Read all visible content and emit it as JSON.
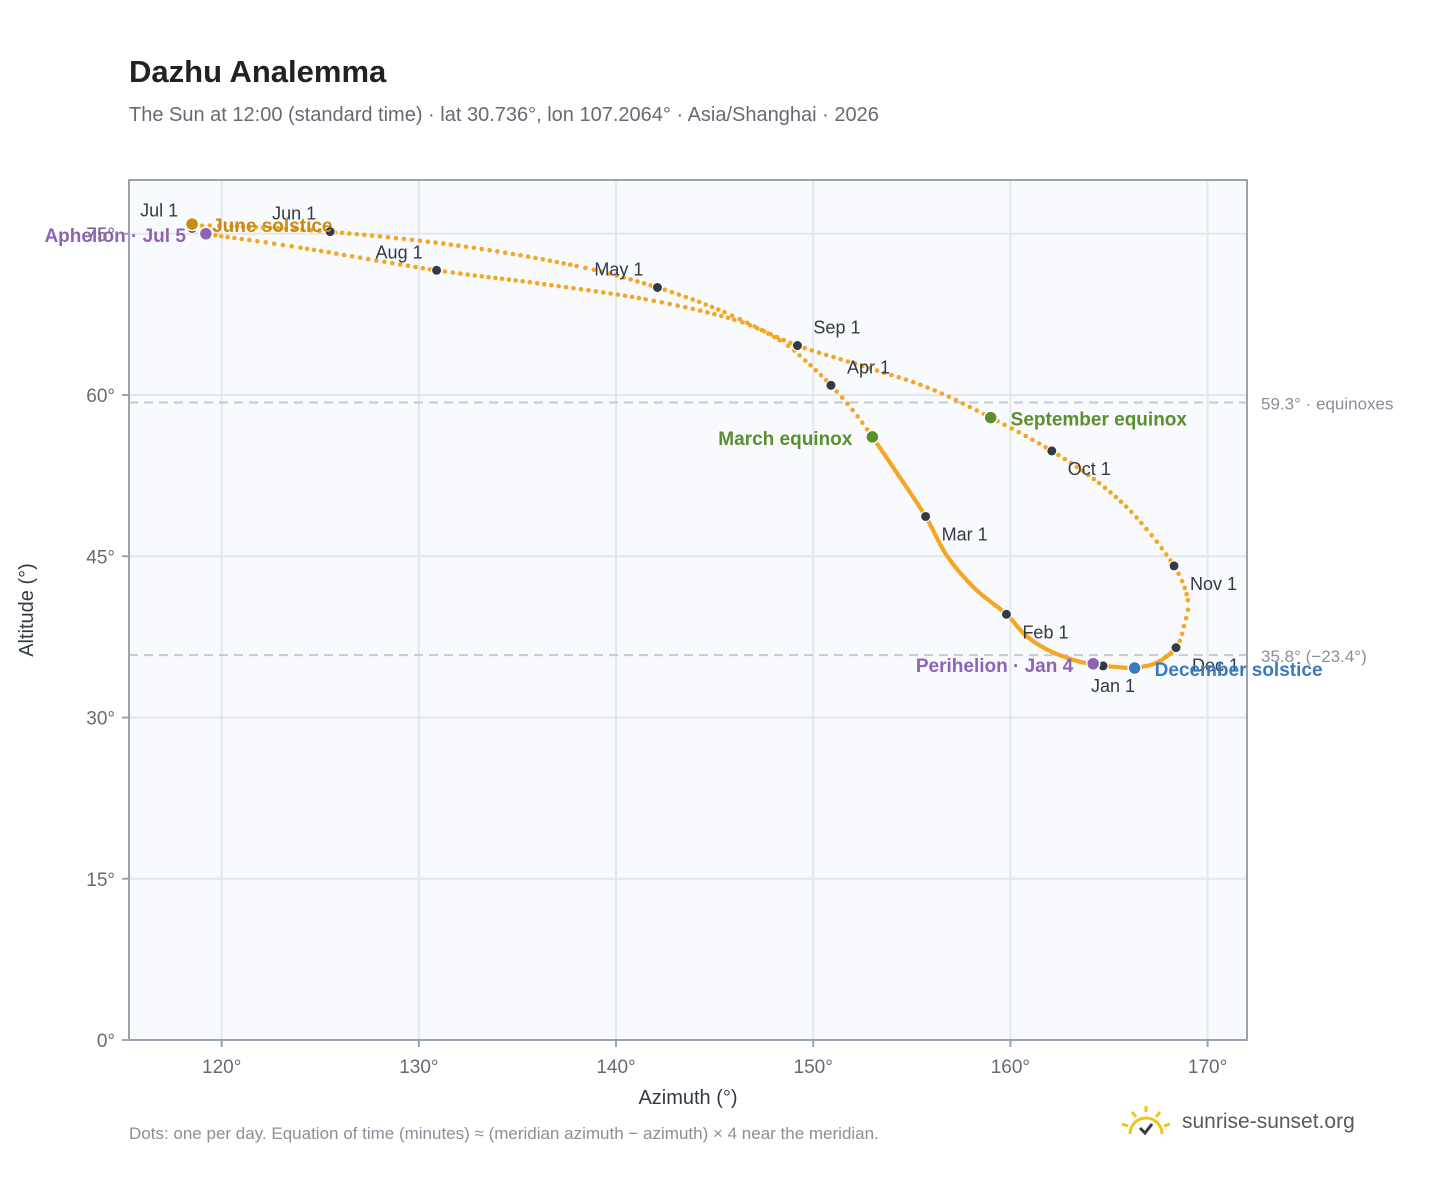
{
  "title": "Dazhu Analemma",
  "subtitle": "The Sun at 12:00 (standard time) · lat 30.736°, lon 107.2064° · Asia/Shanghai · 2026",
  "footer_note": "Dots: one per day. Equation of time (minutes) ≈ (meridian azimuth − azimuth) × 4 near the meridian.",
  "brand": {
    "text": "sunrise-sunset.org",
    "icon": "sun-logo-icon",
    "color": "#f0c419"
  },
  "colors": {
    "curve": "#f5a623",
    "month_dot": "#333a45",
    "march_equinox": "#5a8f2e",
    "september_equinox": "#5a8f2e",
    "june_solstice": "#c88a12",
    "december_solstice": "#3a7bbf",
    "aphelion": "#8e63b5",
    "perihelion": "#8e63b5",
    "grid": "#e3e7ee",
    "frame": "#9aa3b0",
    "plot_bg": "#f8fafd",
    "ref_line": "#c5cad3"
  },
  "chart_data": {
    "type": "scatter",
    "xlabel": "Azimuth (°)",
    "ylabel": "Altitude (°)",
    "xlim": [
      115.3,
      172.0
    ],
    "ylim": [
      0,
      80
    ],
    "x_ticks": [
      120,
      130,
      140,
      150,
      160,
      170
    ],
    "x_tick_labels": [
      "120°",
      "130°",
      "140°",
      "150°",
      "160°",
      "170°"
    ],
    "y_ticks": [
      0,
      15,
      30,
      45,
      60,
      75
    ],
    "y_tick_labels": [
      "0°",
      "15°",
      "30°",
      "45°",
      "60°",
      "75°"
    ],
    "grid": true,
    "reference_lines": [
      {
        "y": 59.3,
        "label": "59.3° · equinoxes"
      },
      {
        "y": 35.8,
        "label": "35.8° (−23.4°)"
      }
    ],
    "path": [
      [
        166.0,
        34.6
      ],
      [
        164.8,
        34.8
      ],
      [
        163.5,
        35.2
      ],
      [
        162.0,
        36.2
      ],
      [
        160.8,
        37.6
      ],
      [
        159.8,
        39.6
      ],
      [
        158.2,
        42.0
      ],
      [
        156.8,
        45.0
      ],
      [
        155.7,
        48.7
      ],
      [
        154.3,
        52.6
      ],
      [
        153.0,
        56.1
      ],
      [
        152.0,
        58.6
      ],
      [
        150.9,
        60.9
      ],
      [
        149.6,
        63.2
      ],
      [
        148.3,
        65.1
      ],
      [
        145.5,
        67.7
      ],
      [
        142.1,
        70.0
      ],
      [
        138.0,
        72.0
      ],
      [
        132.0,
        73.9
      ],
      [
        125.4,
        75.2
      ],
      [
        120.5,
        75.7
      ],
      [
        118.5,
        75.7
      ],
      [
        118.6,
        75.3
      ],
      [
        119.2,
        75.0
      ],
      [
        124.0,
        73.7
      ],
      [
        130.9,
        71.6
      ],
      [
        136.0,
        70.4
      ],
      [
        141.5,
        68.9
      ],
      [
        146.0,
        67.0
      ],
      [
        149.2,
        64.6
      ],
      [
        152.5,
        62.7
      ],
      [
        155.8,
        60.7
      ],
      [
        159.0,
        57.9
      ],
      [
        162.1,
        54.8
      ],
      [
        164.5,
        51.8
      ],
      [
        166.4,
        48.6
      ],
      [
        168.3,
        44.1
      ],
      [
        169.0,
        40.9
      ],
      [
        168.8,
        38.5
      ],
      [
        168.4,
        36.5
      ],
      [
        167.3,
        35.0
      ],
      [
        166.0,
        34.6
      ]
    ],
    "dense_until": 10,
    "month_markers": [
      {
        "label": "Jan 1",
        "x": 164.7,
        "y": 34.8,
        "pos": "below"
      },
      {
        "label": "Feb 1",
        "x": 159.8,
        "y": 39.6,
        "pos": "right-below"
      },
      {
        "label": "Mar 1",
        "x": 155.7,
        "y": 48.7,
        "pos": "right-below"
      },
      {
        "label": "Apr 1",
        "x": 150.9,
        "y": 60.9,
        "pos": "right-above"
      },
      {
        "label": "May 1",
        "x": 142.1,
        "y": 70.0,
        "pos": "left-above"
      },
      {
        "label": "Jun 1",
        "x": 125.5,
        "y": 75.2,
        "pos": "left-above"
      },
      {
        "label": "Jul 1",
        "x": 118.5,
        "y": 75.5,
        "pos": "left-above"
      },
      {
        "label": "Aug 1",
        "x": 130.9,
        "y": 71.6,
        "pos": "left-above"
      },
      {
        "label": "Sep 1",
        "x": 149.2,
        "y": 64.6,
        "pos": "right-above"
      },
      {
        "label": "Oct 1",
        "x": 162.1,
        "y": 54.8,
        "pos": "right-below"
      },
      {
        "label": "Nov 1",
        "x": 168.3,
        "y": 44.1,
        "pos": "right-below"
      },
      {
        "label": "Dec 1",
        "x": 168.4,
        "y": 36.5,
        "pos": "right-below"
      }
    ],
    "events": [
      {
        "label": "March equinox",
        "x": 153.0,
        "y": 56.1,
        "color_key": "march_equinox",
        "side": "left"
      },
      {
        "label": "September equinox",
        "x": 159.0,
        "y": 57.9,
        "color_key": "september_equinox",
        "side": "right"
      },
      {
        "label": "June solstice",
        "x": 118.5,
        "y": 75.9,
        "color_key": "june_solstice",
        "side": "right"
      },
      {
        "label": "December solstice",
        "x": 166.3,
        "y": 34.6,
        "color_key": "december_solstice",
        "side": "right"
      },
      {
        "label": "Aphelion · Jul 5",
        "x": 119.2,
        "y": 75.0,
        "color_key": "aphelion",
        "side": "left"
      },
      {
        "label": "Perihelion · Jan 4",
        "x": 164.2,
        "y": 35.0,
        "color_key": "perihelion",
        "side": "left"
      }
    ]
  }
}
